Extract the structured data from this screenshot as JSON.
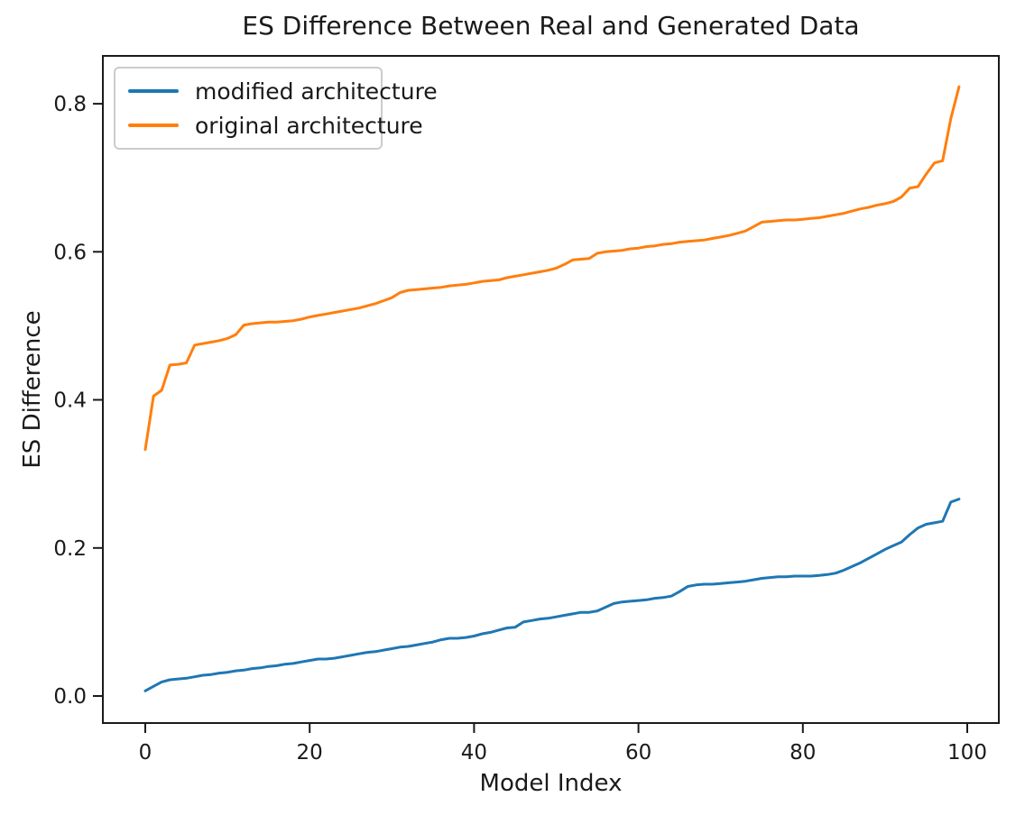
{
  "chart_data": {
    "type": "line",
    "title": "ES Difference Between Real and Generated Data",
    "xlabel": "Model Index",
    "ylabel": "ES Difference",
    "grid": false,
    "background": "#ffffff",
    "axis_color": "#1a1a1a",
    "legend": {
      "position": "upper left"
    },
    "xlim": [
      -5.16,
      103.84
    ],
    "ylim": [
      -0.0365,
      0.8646
    ],
    "xticks": {
      "values": [
        0,
        20,
        40,
        60,
        80,
        100
      ],
      "labels": [
        "0",
        "20",
        "40",
        "60",
        "80",
        "100"
      ]
    },
    "yticks": {
      "values": [
        0.0,
        0.2,
        0.4,
        0.6,
        0.8
      ],
      "labels": [
        "0.0",
        "0.2",
        "0.4",
        "0.6",
        "0.8"
      ]
    },
    "x": [
      0,
      1,
      2,
      3,
      4,
      5,
      6,
      7,
      8,
      9,
      10,
      11,
      12,
      13,
      14,
      15,
      16,
      17,
      18,
      19,
      20,
      21,
      22,
      23,
      24,
      25,
      26,
      27,
      28,
      29,
      30,
      31,
      32,
      33,
      34,
      35,
      36,
      37,
      38,
      39,
      40,
      41,
      42,
      43,
      44,
      45,
      46,
      47,
      48,
      49,
      50,
      51,
      52,
      53,
      54,
      55,
      56,
      57,
      58,
      59,
      60,
      61,
      62,
      63,
      64,
      65,
      66,
      67,
      68,
      69,
      70,
      71,
      72,
      73,
      74,
      75,
      76,
      77,
      78,
      79,
      80,
      81,
      82,
      83,
      84,
      85,
      86,
      87,
      88,
      89,
      90,
      91,
      92,
      93,
      94,
      95,
      96,
      97,
      98,
      99
    ],
    "series": [
      {
        "name": "modified architecture",
        "color": "#1f77b4",
        "values": [
          0.007,
          0.013,
          0.019,
          0.022,
          0.023,
          0.024,
          0.026,
          0.028,
          0.029,
          0.031,
          0.032,
          0.034,
          0.035,
          0.037,
          0.038,
          0.04,
          0.041,
          0.043,
          0.044,
          0.046,
          0.048,
          0.05,
          0.05,
          0.051,
          0.053,
          0.055,
          0.057,
          0.059,
          0.06,
          0.062,
          0.064,
          0.066,
          0.067,
          0.069,
          0.071,
          0.073,
          0.076,
          0.078,
          0.078,
          0.079,
          0.081,
          0.084,
          0.086,
          0.089,
          0.092,
          0.093,
          0.1,
          0.102,
          0.104,
          0.105,
          0.107,
          0.109,
          0.111,
          0.113,
          0.113,
          0.115,
          0.12,
          0.125,
          0.127,
          0.128,
          0.129,
          0.13,
          0.132,
          0.133,
          0.135,
          0.141,
          0.148,
          0.15,
          0.151,
          0.151,
          0.152,
          0.153,
          0.154,
          0.155,
          0.157,
          0.159,
          0.16,
          0.161,
          0.161,
          0.162,
          0.162,
          0.162,
          0.163,
          0.164,
          0.166,
          0.17,
          0.175,
          0.18,
          0.186,
          0.192,
          0.198,
          0.203,
          0.208,
          0.218,
          0.227,
          0.232,
          0.234,
          0.236,
          0.262,
          0.266
        ]
      },
      {
        "name": "original architecture",
        "color": "#ff7f0e",
        "values": [
          0.333,
          0.405,
          0.413,
          0.447,
          0.448,
          0.45,
          0.474,
          0.476,
          0.478,
          0.48,
          0.483,
          0.488,
          0.501,
          0.503,
          0.504,
          0.505,
          0.505,
          0.506,
          0.507,
          0.509,
          0.512,
          0.514,
          0.516,
          0.518,
          0.52,
          0.522,
          0.524,
          0.527,
          0.53,
          0.534,
          0.538,
          0.545,
          0.548,
          0.549,
          0.55,
          0.551,
          0.552,
          0.554,
          0.555,
          0.556,
          0.558,
          0.56,
          0.561,
          0.562,
          0.565,
          0.567,
          0.569,
          0.571,
          0.573,
          0.575,
          0.578,
          0.583,
          0.589,
          0.59,
          0.591,
          0.598,
          0.6,
          0.601,
          0.602,
          0.604,
          0.605,
          0.607,
          0.608,
          0.61,
          0.611,
          0.613,
          0.614,
          0.615,
          0.616,
          0.618,
          0.62,
          0.622,
          0.625,
          0.628,
          0.634,
          0.64,
          0.641,
          0.642,
          0.643,
          0.643,
          0.644,
          0.645,
          0.646,
          0.648,
          0.65,
          0.652,
          0.655,
          0.658,
          0.66,
          0.663,
          0.665,
          0.668,
          0.674,
          0.686,
          0.688,
          0.705,
          0.72,
          0.723,
          0.78,
          0.823
        ]
      }
    ]
  }
}
